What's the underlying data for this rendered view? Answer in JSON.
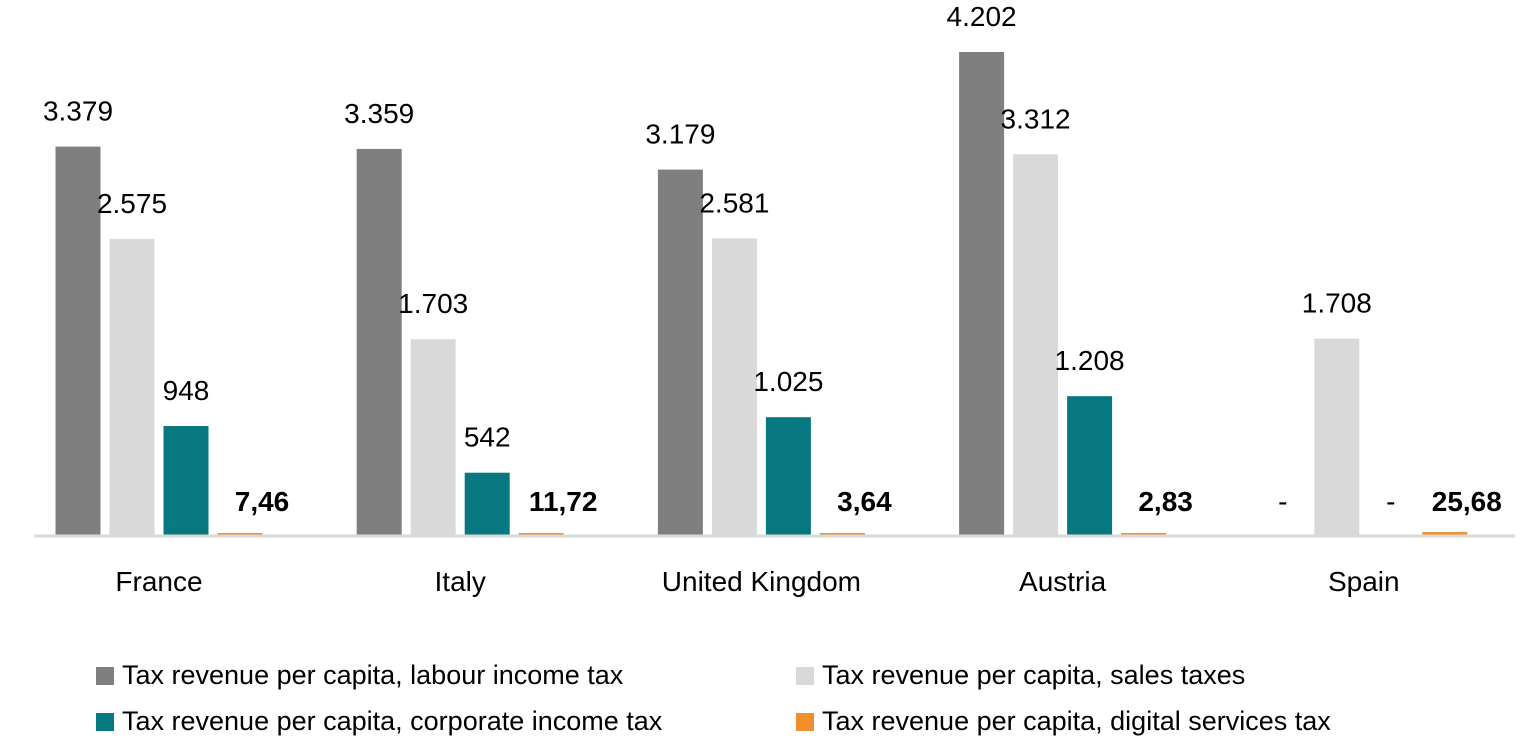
{
  "chart_data": {
    "type": "bar",
    "title": "",
    "xlabel": "",
    "ylabel": "",
    "ylim": [
      0,
      4202
    ],
    "grid": false,
    "legend_position": "bottom",
    "categories": [
      "France",
      "Italy",
      "United Kingdom",
      "Austria",
      "Spain"
    ],
    "series": [
      {
        "name": "Tax revenue per capita, labour income tax",
        "color": "#7f7f7f",
        "values": [
          3379,
          3359,
          3179,
          4202,
          0
        ],
        "labels": [
          "3.379",
          "3.359",
          "3.179",
          "4.202",
          "-"
        ],
        "label_bold": false
      },
      {
        "name": "Tax revenue per capita, sales taxes",
        "color": "#d9d9d9",
        "values": [
          2575,
          1703,
          2581,
          3312,
          1708
        ],
        "labels": [
          "2.575",
          "1.703",
          "2.581",
          "3.312",
          "1.708"
        ],
        "label_bold": false
      },
      {
        "name": "Tax revenue per capita, corporate income tax",
        "color": "#087880",
        "values": [
          948,
          542,
          1025,
          1208,
          0
        ],
        "labels": [
          "948",
          "542",
          "1.025",
          "1.208",
          "-"
        ],
        "label_bold": false
      },
      {
        "name": "Tax revenue per capita, digital services tax",
        "color": "#f28e2b",
        "values": [
          7.46,
          11.72,
          3.64,
          2.83,
          25.68
        ],
        "labels": [
          "7,46",
          "11,72",
          "3,64",
          "2,83",
          "25,68"
        ],
        "label_bold": true
      }
    ]
  }
}
